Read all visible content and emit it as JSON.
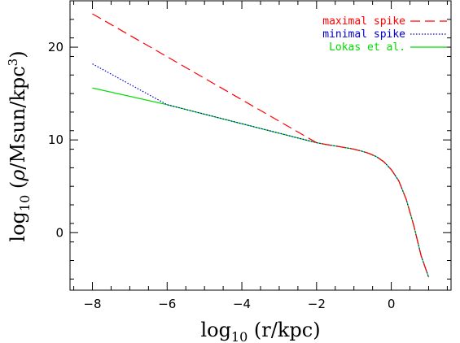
{
  "chart_data": {
    "type": "line",
    "title": "",
    "xlabel": {
      "main": "log",
      "sub": "10",
      "rest": " (r/kpc)"
    },
    "ylabel": {
      "main": "log",
      "sub": "10",
      "open": " (",
      "rho": "ρ",
      "mid": "/Msun/kpc",
      "sup": "3",
      "close": ")"
    },
    "xlim": [
      -8.6,
      1.6
    ],
    "ylim": [
      -6.2,
      25
    ],
    "xticks": [
      -8,
      -6,
      -4,
      -2,
      0
    ],
    "yticks": [
      0,
      10,
      20
    ],
    "grid": false,
    "legend_position": "top-right",
    "series": [
      {
        "name": "maximal spike",
        "color": "#ff0000",
        "dash": "dashed",
        "x": [
          -8,
          -2,
          -1.8,
          -1.5,
          -1.2,
          -1.0,
          -0.8,
          -0.6,
          -0.4,
          -0.2,
          0,
          0.2,
          0.4,
          0.6,
          0.8,
          1.0
        ],
        "y": [
          23.6,
          9.7,
          9.55,
          9.35,
          9.15,
          9.0,
          8.8,
          8.55,
          8.2,
          7.65,
          6.8,
          5.6,
          3.6,
          0.8,
          -2.5,
          -4.8
        ]
      },
      {
        "name": "minimal spike",
        "color": "#0000cc",
        "dash": "dotted",
        "x": [
          -8,
          -6,
          -2,
          -1.8,
          -1.5,
          -1.2,
          -1.0,
          -0.8,
          -0.6,
          -0.4,
          -0.2,
          0,
          0.2,
          0.4,
          0.6,
          0.8,
          1.0
        ],
        "y": [
          18.2,
          13.8,
          9.7,
          9.55,
          9.35,
          9.15,
          9.0,
          8.8,
          8.55,
          8.2,
          7.65,
          6.8,
          5.6,
          3.6,
          0.8,
          -2.5,
          -4.8
        ]
      },
      {
        "name": "Lokas et al.",
        "color": "#00dd00",
        "dash": "solid",
        "x": [
          -8,
          -6,
          -2,
          -1.8,
          -1.5,
          -1.2,
          -1.0,
          -0.8,
          -0.6,
          -0.4,
          -0.2,
          0,
          0.2,
          0.4,
          0.6,
          0.8,
          1.0
        ],
        "y": [
          15.6,
          13.8,
          9.7,
          9.55,
          9.35,
          9.15,
          9.0,
          8.8,
          8.55,
          8.2,
          7.65,
          6.8,
          5.6,
          3.6,
          0.8,
          -2.5,
          -4.8
        ]
      }
    ]
  }
}
